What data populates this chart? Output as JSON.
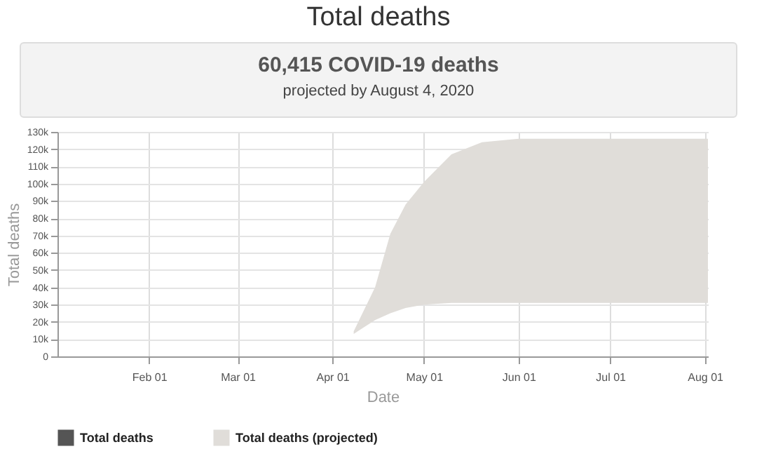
{
  "chart_data": {
    "type": "line",
    "title": "Total deaths",
    "subtitle": "60,415 COVID-19 deaths",
    "annotations": [
      "projected by August 4, 2020"
    ],
    "xlabel": "Date",
    "ylabel": "Total deaths",
    "x": [
      "2020-04-08",
      "2020-04-15",
      "2020-04-20",
      "2020-04-25",
      "2020-05-01",
      "2020-05-10",
      "2020-05-20",
      "2020-06-01",
      "2020-07-01",
      "2020-08-02"
    ],
    "series": [
      {
        "name": "Total deaths",
        "color": "#555555",
        "values": [
          null,
          null,
          null,
          null,
          null,
          null,
          null,
          null,
          null,
          null
        ]
      },
      {
        "name": "Total deaths (projected)",
        "type": "area",
        "color": "#e0ddd9",
        "values": [
          null,
          null,
          null,
          null,
          null,
          null,
          null,
          null,
          null,
          null
        ],
        "lower": [
          13000,
          21000,
          25000,
          28000,
          30000,
          31000,
          31000,
          31000,
          31000,
          31000
        ],
        "upper": [
          14500,
          40000,
          71000,
          88000,
          101000,
          117000,
          124000,
          126000,
          126000,
          126000
        ]
      }
    ],
    "xlim": [
      "2020-01-02",
      "2020-08-02"
    ],
    "xticks": [
      {
        "value": "2020-02-01",
        "label": "Feb 01"
      },
      {
        "value": "2020-03-01",
        "label": "Mar 01"
      },
      {
        "value": "2020-04-01",
        "label": "Apr 01"
      },
      {
        "value": "2020-05-01",
        "label": "May 01"
      },
      {
        "value": "2020-06-01",
        "label": "Jun 01"
      },
      {
        "value": "2020-07-01",
        "label": "Jul 01"
      },
      {
        "value": "2020-08-01",
        "label": "Aug 01"
      }
    ],
    "ylim": [
      0,
      130000
    ],
    "yticks": [
      {
        "value": 0,
        "label": "0"
      },
      {
        "value": 10000,
        "label": "10k"
      },
      {
        "value": 20000,
        "label": "20k"
      },
      {
        "value": 30000,
        "label": "30k"
      },
      {
        "value": 40000,
        "label": "40k"
      },
      {
        "value": 50000,
        "label": "50k"
      },
      {
        "value": 60000,
        "label": "60k"
      },
      {
        "value": 70000,
        "label": "70k"
      },
      {
        "value": 80000,
        "label": "80k"
      },
      {
        "value": 90000,
        "label": "90k"
      },
      {
        "value": 100000,
        "label": "100k"
      },
      {
        "value": 110000,
        "label": "110k"
      },
      {
        "value": 120000,
        "label": "120k"
      },
      {
        "value": 130000,
        "label": "130k"
      }
    ],
    "grid": true,
    "legend": "bottom"
  }
}
